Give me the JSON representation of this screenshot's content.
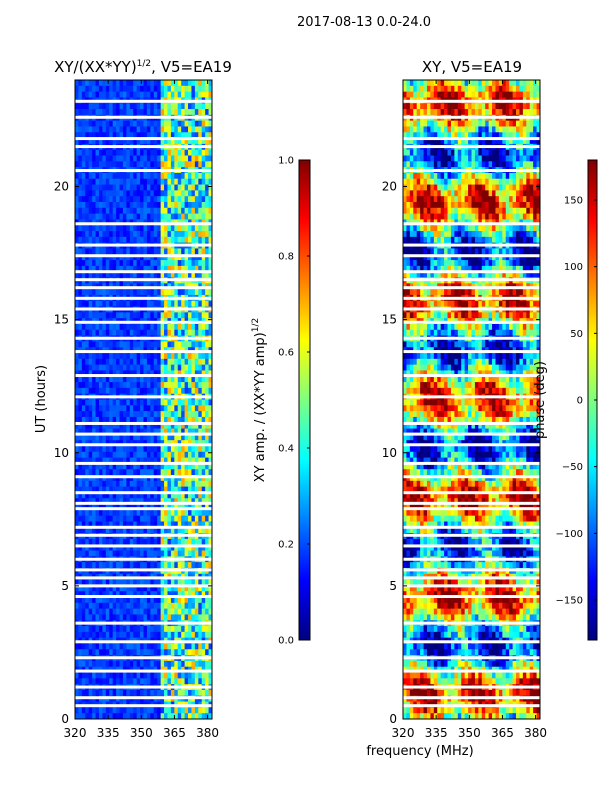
{
  "suptitle": "2017-08-13 0.0-24.0",
  "shared_xlabel": "frequency (MHz)",
  "colors": {
    "jet": [
      "#00007f",
      "#0000ff",
      "#007fff",
      "#00ffff",
      "#7fff7f",
      "#ffff00",
      "#ff7f00",
      "#ff0000",
      "#7f0000"
    ],
    "gap": "#ffffff"
  },
  "gap_rows_hours": [
    23.2,
    22.6,
    21.8,
    21.5,
    20.6,
    18.6,
    17.8,
    17.4,
    16.8,
    16.5,
    16.2,
    15.8,
    15.4,
    14.9,
    14.3,
    13.8,
    12.9,
    12.1,
    11.1,
    10.7,
    10.3,
    9.6,
    9.1,
    8.5,
    8.1,
    7.9,
    7.2,
    6.9,
    6.5,
    6.0,
    5.6,
    5.3,
    5.0,
    4.6,
    3.6,
    2.9,
    2.3,
    1.8,
    1.2,
    0.8,
    0.5
  ],
  "chart_data": [
    {
      "type": "heatmap",
      "title": "XY/(XX*YY)^1/2, V5=EA19",
      "title_main": "XY/(XX*YY)",
      "title_sup": "1/2",
      "title_rest": ", V5=EA19",
      "xlabel": "",
      "ylabel": "UT (hours)",
      "xlim": [
        320,
        382
      ],
      "ylim": [
        0,
        24
      ],
      "xticks": [
        320,
        335,
        350,
        365,
        380
      ],
      "yticks": [
        0,
        5,
        10,
        15,
        20
      ],
      "colorbar": {
        "label": "XY amp. / (XX*YY amp)^1/2",
        "label_main": "XY amp. / (XX*YY amp)",
        "label_sup": "1/2",
        "range": [
          0.0,
          1.0
        ],
        "ticks": [
          "0.0",
          "0.2",
          "0.4",
          "0.6",
          "0.8",
          "1.0"
        ],
        "tick_values": [
          0.0,
          0.2,
          0.4,
          0.6,
          0.8,
          1.0
        ]
      },
      "pattern": {
        "low_band_mhz": [
          320,
          359
        ],
        "low_band_value": 0.12,
        "high_band_mhz": [
          359,
          382
        ],
        "high_band_value": 0.45
      }
    },
    {
      "type": "heatmap",
      "title": "XY, V5=EA19",
      "xlabel": "frequency (MHz)",
      "ylabel": "",
      "xlim": [
        320,
        382
      ],
      "ylim": [
        0,
        24
      ],
      "xticks": [
        320,
        335,
        350,
        365,
        380
      ],
      "yticks": [
        0,
        5,
        10,
        15,
        20
      ],
      "colorbar": {
        "label": "phase (deg)",
        "range": [
          -180,
          180
        ],
        "ticks": [
          "−150",
          "−100",
          "−50",
          "0",
          "50",
          "100",
          "150"
        ],
        "tick_values": [
          -150,
          -100,
          -50,
          0,
          50,
          100,
          150
        ]
      }
    }
  ]
}
